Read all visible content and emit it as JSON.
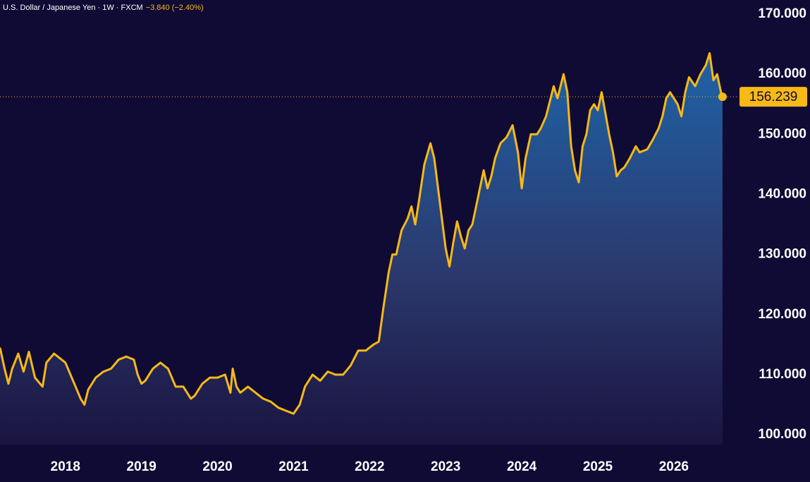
{
  "chart_data": {
    "type": "area",
    "title": "U.S. Dollar / Japanese Yen · 1W · FXCM",
    "change": "−3.840 (−2.40%)",
    "color": "#f7b916",
    "x": [
      2017.14,
      2017.2,
      2017.25,
      2017.3,
      2017.38,
      2017.45,
      2017.52,
      2017.6,
      2017.7,
      2017.75,
      2017.85,
      2017.95,
      2018.0,
      2018.1,
      2018.2,
      2018.25,
      2018.3,
      2018.4,
      2018.5,
      2018.6,
      2018.7,
      2018.8,
      2018.9,
      2018.95,
      2019.0,
      2019.05,
      2019.15,
      2019.25,
      2019.35,
      2019.45,
      2019.55,
      2019.65,
      2019.7,
      2019.8,
      2019.9,
      2020.0,
      2020.1,
      2020.17,
      2020.2,
      2020.25,
      2020.3,
      2020.4,
      2020.5,
      2020.6,
      2020.7,
      2020.8,
      2020.9,
      2021.0,
      2021.08,
      2021.15,
      2021.25,
      2021.35,
      2021.45,
      2021.55,
      2021.65,
      2021.75,
      2021.85,
      2021.95,
      2022.05,
      2022.12,
      2022.18,
      2022.25,
      2022.3,
      2022.35,
      2022.42,
      2022.5,
      2022.55,
      2022.6,
      2022.65,
      2022.72,
      2022.8,
      2022.85,
      2022.9,
      2022.95,
      2023.0,
      2023.05,
      2023.1,
      2023.15,
      2023.2,
      2023.25,
      2023.3,
      2023.35,
      2023.4,
      2023.45,
      2023.5,
      2023.55,
      2023.6,
      2023.65,
      2023.72,
      2023.8,
      2023.88,
      2023.95,
      2024.0,
      2024.05,
      2024.12,
      2024.2,
      2024.25,
      2024.32,
      2024.38,
      2024.42,
      2024.47,
      2024.55,
      2024.6,
      2024.65,
      2024.7,
      2024.75,
      2024.8,
      2024.85,
      2024.9,
      2024.95,
      2025.0,
      2025.05,
      2025.1,
      2025.15,
      2025.2,
      2025.25,
      2025.3,
      2025.35,
      2025.42,
      2025.5,
      2025.55,
      2025.65,
      2025.72,
      2025.8,
      2025.85,
      2025.9,
      2025.95,
      2026.05,
      2026.1,
      2026.15,
      2026.2,
      2026.28,
      2026.35,
      2026.42,
      2026.47,
      2026.52,
      2026.57,
      2026.62,
      2026.64
    ],
    "values": [
      114.5,
      111,
      108.5,
      111,
      113.5,
      110.5,
      113.8,
      109.5,
      108,
      112,
      113.5,
      112.5,
      112,
      109,
      106,
      105,
      107.5,
      109.5,
      110.5,
      111,
      112.5,
      113,
      112.5,
      110,
      108.5,
      109,
      111,
      112,
      111,
      108,
      108,
      106,
      106.5,
      108.5,
      109.5,
      109.5,
      110,
      107,
      111,
      108,
      107,
      108,
      107,
      106,
      105.5,
      104.5,
      104,
      103.5,
      105,
      108,
      110,
      109,
      110.5,
      110,
      110,
      111.5,
      114,
      114,
      115,
      115.5,
      121,
      127,
      130,
      130,
      134,
      136,
      138,
      135,
      139,
      145,
      148.5,
      146,
      141,
      136,
      131,
      128,
      132,
      135.5,
      133,
      131,
      134,
      135,
      138,
      141,
      144,
      141,
      143,
      146,
      148.5,
      149.5,
      151.5,
      147,
      141,
      146,
      150,
      150,
      151,
      153,
      156,
      158,
      156,
      160,
      157,
      148,
      144,
      142,
      148,
      150,
      154,
      155,
      154,
      157,
      153.5,
      150,
      147,
      143,
      144,
      144.5,
      146,
      148,
      147,
      147.5,
      149,
      151,
      153,
      156,
      157,
      155,
      153,
      157,
      159.5,
      158,
      160,
      161.5,
      163.5,
      159,
      160,
      157,
      156.239
    ],
    "xlim": [
      2017.14,
      2026.78
    ],
    "xticks": [
      2018,
      2019,
      2020,
      2021,
      2022,
      2023,
      2024,
      2025,
      2026
    ],
    "ylim": [
      98.36,
      172.35
    ],
    "yticks": [
      {
        "value": 100,
        "label": "100.000"
      },
      {
        "value": 110,
        "label": "110.000"
      },
      {
        "value": 120,
        "label": "120.000"
      },
      {
        "value": 130,
        "label": "130.000"
      },
      {
        "value": 140,
        "label": "140.000"
      },
      {
        "value": 150,
        "label": "150.000"
      },
      {
        "value": 160,
        "label": "160.000"
      },
      {
        "value": 170,
        "label": "170.000"
      }
    ]
  }
}
